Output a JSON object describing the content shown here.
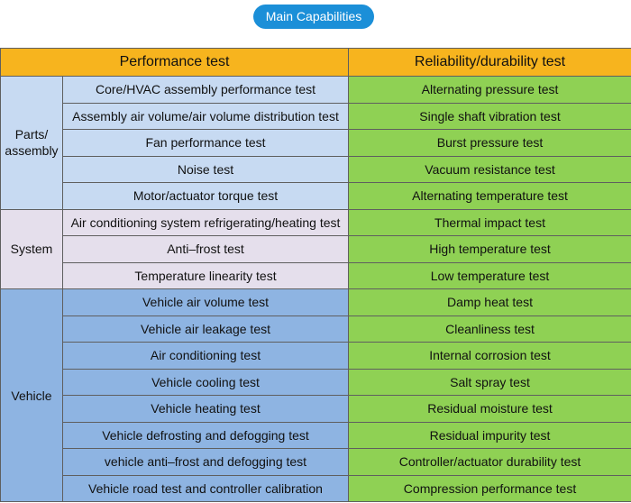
{
  "badge": "Main Capabilities",
  "headers": {
    "performance": "Performance test",
    "reliability": "Reliability/durability test"
  },
  "groups": {
    "parts": "Parts/ assembly",
    "system": "System",
    "vehicle": "Vehicle"
  },
  "performance_tests": [
    "Core/HVAC assembly performance test",
    "Assembly air volume/air volume distribution test",
    "Fan performance test",
    "Noise test",
    "Motor/actuator torque test",
    "Air conditioning system refrigerating/heating test",
    "Anti–frost test",
    "Temperature linearity test",
    "Vehicle air volume test",
    "Vehicle air leakage test",
    "Air conditioning test",
    "Vehicle cooling test",
    "Vehicle heating test",
    "Vehicle defrosting and defogging test",
    "vehicle anti–frost and defogging test",
    "Vehicle road test and controller calibration"
  ],
  "reliability_tests": [
    "Alternating pressure test",
    "Single shaft vibration test",
    "Burst pressure test",
    "Vacuum resistance test",
    "Alternating temperature test",
    "Thermal impact test",
    "High temperature test",
    "Low temperature test",
    "Damp heat test",
    "Cleanliness test",
    "Internal corrosion test",
    "Salt spray test",
    "Residual moisture test",
    "Residual impurity test",
    "Controller/actuator durability test",
    "Compression performance test"
  ],
  "colors": {
    "badge": "#1b8fd8",
    "header": "#f7b41e",
    "parts": "#c7daf2",
    "system": "#e5dfec",
    "vehicle": "#8eb4e2",
    "reliability": "#8fd154"
  }
}
